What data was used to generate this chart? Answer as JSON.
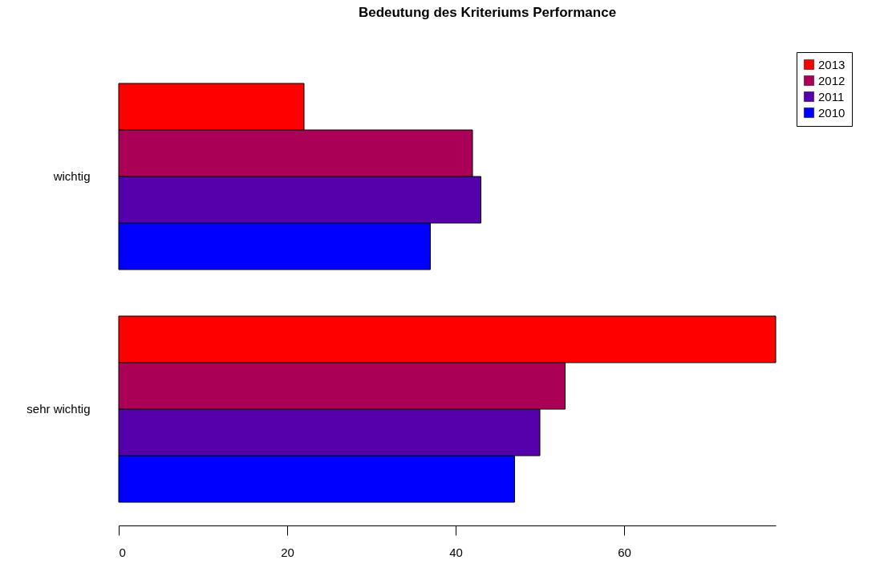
{
  "chart_data": {
    "type": "bar",
    "orientation": "horizontal",
    "title": "Bedeutung des Kriteriums Performance",
    "categories": [
      "wichtig",
      "sehr wichtig"
    ],
    "series": [
      {
        "name": "2013",
        "color": "#ff0000",
        "values": [
          22,
          78
        ]
      },
      {
        "name": "2012",
        "color": "#aa0055",
        "values": [
          42,
          53
        ]
      },
      {
        "name": "2011",
        "color": "#5500aa",
        "values": [
          43,
          50
        ]
      },
      {
        "name": "2010",
        "color": "#0000ff",
        "values": [
          37,
          47
        ]
      }
    ],
    "xlim": [
      0,
      78
    ],
    "xticks": [
      0,
      20,
      40,
      60
    ],
    "grid": false,
    "legend": "top right"
  }
}
